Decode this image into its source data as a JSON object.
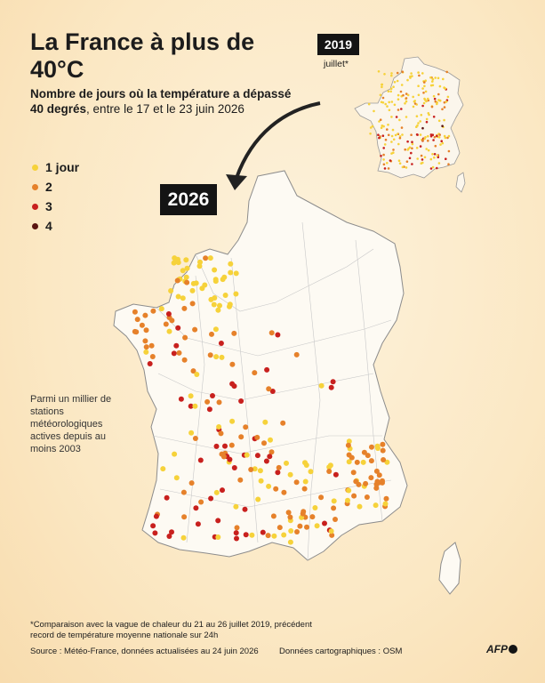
{
  "title": "La France à plus de 40°C",
  "subtitle_bold": "Nombre de jours où la température a dépassé 40 degrés",
  "subtitle_rest": ", entre le 17 et le 23 juin 2026",
  "legend": [
    {
      "label": "1 jour",
      "color": "#f6d23a"
    },
    {
      "label": "2",
      "color": "#e6812a"
    },
    {
      "label": "3",
      "color": "#c8201e"
    },
    {
      "label": "4",
      "color": "#5a1410"
    }
  ],
  "main_year": "2026",
  "inset_year": "2019",
  "inset_note": "juillet*",
  "side_note": "Parmi un millier de stations météorologiques actives depuis au moins 2003",
  "footnote": "*Comparaison avec la vague de chaleur du 21 au 26 juillet 2019, précédent record de température moyenne nationale sur 24h",
  "source": "Source : Météo-France, données actualisées au 24 juin 2026",
  "map_credit": "Données cartographiques : OSM",
  "logo": "AFP"
}
